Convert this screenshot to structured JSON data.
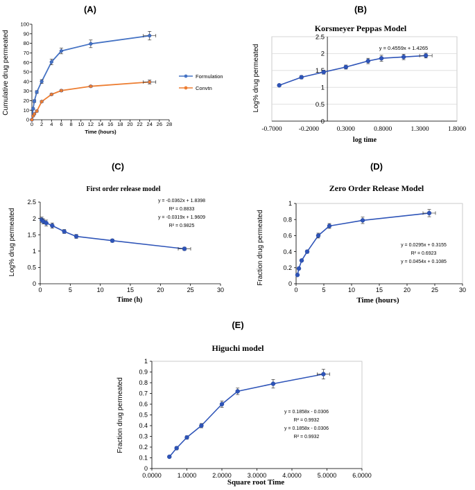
{
  "chart_data": [
    {
      "panel": "(A)",
      "type": "line",
      "title": "",
      "xlabel": "Time (hours)",
      "ylabel": "Cumulative drug permeated",
      "xlim": [
        0,
        28
      ],
      "ylim": [
        0,
        100
      ],
      "x_ticks": [
        "0",
        "2",
        "4",
        "6",
        "8",
        "10",
        "12",
        "14",
        "16",
        "18",
        "20",
        "22",
        "24",
        "26",
        "28"
      ],
      "y_ticks": [
        "0",
        "10",
        "20",
        "30",
        "40",
        "50",
        "60",
        "70",
        "80",
        "90",
        "100"
      ],
      "legend_position": "right",
      "series": [
        {
          "name": "Formulation",
          "color": "#4472C4",
          "marker": "circle",
          "x": [
            0,
            0.25,
            0.5,
            1,
            2,
            4,
            6,
            12,
            24
          ],
          "y": [
            0,
            11.5,
            19.5,
            29,
            40,
            60.5,
            72,
            79.5,
            88
          ],
          "err": [
            0,
            1,
            1.5,
            1.5,
            2,
            3,
            3,
            4,
            4.5
          ]
        },
        {
          "name": "Convtn",
          "color": "#ED7D31",
          "marker": "circle",
          "x": [
            0,
            0.25,
            0.5,
            1,
            2,
            4,
            6,
            12,
            24
          ],
          "y": [
            0,
            4,
            6,
            9,
            19,
            26.5,
            30.5,
            35,
            39.5
          ],
          "err": [
            0,
            0.5,
            0.5,
            1,
            1,
            1,
            1,
            1,
            2
          ]
        }
      ]
    },
    {
      "panel": "(B)",
      "type": "line",
      "title": "Korsmeyer Peppas Model",
      "xlabel": "log time",
      "ylabel": "Log% drug permeated",
      "xlim": [
        -0.7,
        1.8
      ],
      "ylim": [
        0,
        2.5
      ],
      "x_ticks": [
        "-0.7000",
        "-0.2000",
        "0.3000",
        "0.8000",
        "1.3000",
        "1.8000"
      ],
      "y_ticks": [
        "0",
        "0.5",
        "1",
        "1.5",
        "2",
        "2.5"
      ],
      "equation": "y = 0.4559x + 1.4265",
      "series": [
        {
          "name": "Korsmeyer Peppas",
          "color": "#2E54B8",
          "marker": "circle",
          "x": [
            -0.6,
            -0.3,
            0,
            0.3,
            0.6,
            0.78,
            1.08,
            1.38
          ],
          "y": [
            1.06,
            1.3,
            1.45,
            1.6,
            1.78,
            1.86,
            1.9,
            1.94
          ],
          "err": [
            0.03,
            0.05,
            0.06,
            0.06,
            0.08,
            0.09,
            0.08,
            0.07
          ]
        }
      ]
    },
    {
      "panel": "(C)",
      "type": "line",
      "title": "First order release model",
      "xlabel": "Time (h)",
      "ylabel": "Log% drug permeated",
      "xlim": [
        0,
        30
      ],
      "ylim": [
        0,
        2.5
      ],
      "x_ticks": [
        "0",
        "5",
        "10",
        "15",
        "20",
        "25",
        "30"
      ],
      "y_ticks": [
        "0",
        "0.5",
        "1",
        "1.5",
        "2",
        "2.5"
      ],
      "annotations": [
        "y = -0.0362x + 1.8398",
        "R² = 0.8833",
        "y = -0.0319x + 1.9609",
        "R² = 0.9825"
      ],
      "series": [
        {
          "name": "First order",
          "color": "#2E54B8",
          "marker": "circle",
          "x": [
            0.25,
            0.5,
            1,
            2,
            4,
            6,
            12,
            24
          ],
          "y": [
            1.96,
            1.91,
            1.86,
            1.78,
            1.6,
            1.45,
            1.32,
            1.07
          ],
          "err": [
            0.08,
            0.08,
            0.09,
            0.08,
            0.06,
            0.06,
            0.05,
            0.05
          ]
        }
      ]
    },
    {
      "panel": "(D)",
      "type": "line",
      "title": "Zero Order Release Model",
      "xlabel": "Time (hours)",
      "ylabel": "Fraction drug permeated",
      "xlim": [
        0,
        30
      ],
      "ylim": [
        0,
        1
      ],
      "x_ticks": [
        "0",
        "5",
        "10",
        "15",
        "20",
        "25",
        "30"
      ],
      "y_ticks": [
        "0",
        "0.2",
        "0.4",
        "0.6",
        "0.8",
        "1"
      ],
      "annotations": [
        "y = 0.0295x + 0.3155",
        "R² = 0.6923",
        "y = 0.0454x + 0.1085"
      ],
      "series": [
        {
          "name": "Zero order",
          "color": "#2E54B8",
          "marker": "circle",
          "x": [
            0.25,
            0.5,
            1,
            2,
            4,
            6,
            12,
            24
          ],
          "y": [
            0.11,
            0.19,
            0.29,
            0.4,
            0.6,
            0.72,
            0.79,
            0.88
          ],
          "err": [
            0.01,
            0.015,
            0.015,
            0.02,
            0.03,
            0.03,
            0.04,
            0.045
          ]
        }
      ]
    },
    {
      "panel": "(E)",
      "type": "line",
      "title": "Higuchi model",
      "xlabel": "Square root Time",
      "ylabel": "Fraction drug permeated",
      "xlim": [
        0,
        6
      ],
      "ylim": [
        0,
        1
      ],
      "x_ticks": [
        "0.0000",
        "1.0000",
        "2.0000",
        "3.0000",
        "4.0000",
        "5.0000",
        "6.0000"
      ],
      "y_ticks": [
        "0",
        "0.1",
        "0.2",
        "0.3",
        "0.4",
        "0.5",
        "0.6",
        "0.7",
        "0.8",
        "0.9",
        "1"
      ],
      "annotations": [
        "y = 0.1858x - 0.0306",
        "R² = 0.9932",
        "y = 0.1858x - 0.0306",
        "R² = 0.9932"
      ],
      "series": [
        {
          "name": "Higuchi",
          "color": "#2E54B8",
          "marker": "circle",
          "x": [
            0.5,
            0.7071,
            1,
            1.4142,
            2,
            2.4495,
            3.4641,
            4.899
          ],
          "y": [
            0.11,
            0.19,
            0.29,
            0.4,
            0.6,
            0.72,
            0.79,
            0.88
          ],
          "err": [
            0.01,
            0.015,
            0.015,
            0.02,
            0.03,
            0.03,
            0.04,
            0.045
          ]
        }
      ]
    }
  ]
}
